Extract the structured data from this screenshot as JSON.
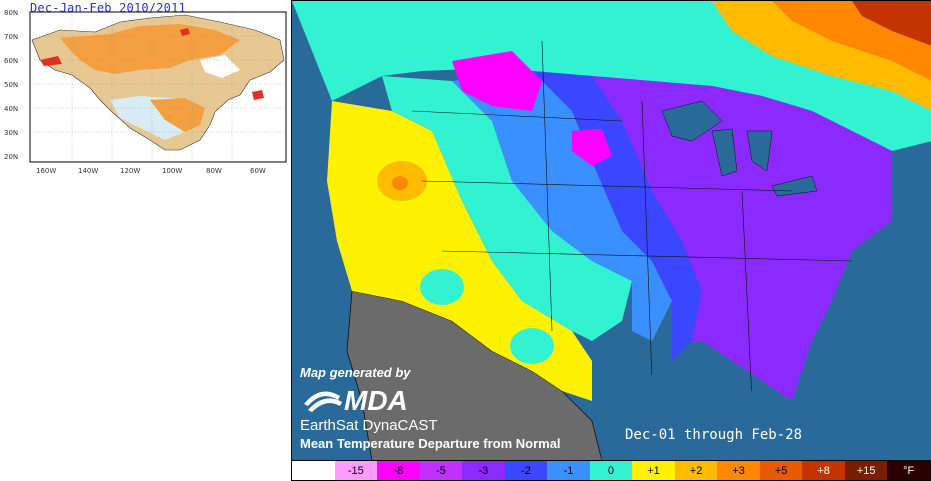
{
  "inset": {
    "title": "Dec-Jan-Feb 2010/2011",
    "lat_labels": [
      "80N",
      "70N",
      "60N",
      "50N",
      "40N",
      "30N",
      "20N"
    ],
    "lon_labels": [
      "160W",
      "140W",
      "120W",
      "100W",
      "80W",
      "60W"
    ]
  },
  "main": {
    "generated_by": "Map generated by",
    "logo_text": "MDA",
    "brand": "EarthSat DynaCAST",
    "subtitle": "Mean Temperature Departure from Normal",
    "period": "Dec-01 through Feb-28"
  },
  "legend": {
    "unit": "°F",
    "items": [
      {
        "label": "",
        "color": "#ffffff"
      },
      {
        "label": "-15",
        "color": "#ff9cff"
      },
      {
        "label": "-8",
        "color": "#ff00ff"
      },
      {
        "label": "-5",
        "color": "#c030ff"
      },
      {
        "label": "-3",
        "color": "#8a2aff"
      },
      {
        "label": "-2",
        "color": "#3a46ff"
      },
      {
        "label": "-1",
        "color": "#3a90ff"
      },
      {
        "label": "0",
        "color": "#33f2d2"
      },
      {
        "label": "+1",
        "color": "#fff200"
      },
      {
        "label": "+2",
        "color": "#ffbb00"
      },
      {
        "label": "+3",
        "color": "#ff8800"
      },
      {
        "label": "+5",
        "color": "#e85a00"
      },
      {
        "label": "+8",
        "color": "#c43400"
      },
      {
        "label": "+15",
        "color": "#7a1e00"
      },
      {
        "label": "°F",
        "color": "#2a0000"
      }
    ]
  },
  "colors": {
    "water": "#2a6a9a",
    "mexico": "#6b6b6b",
    "border": "#111111"
  }
}
